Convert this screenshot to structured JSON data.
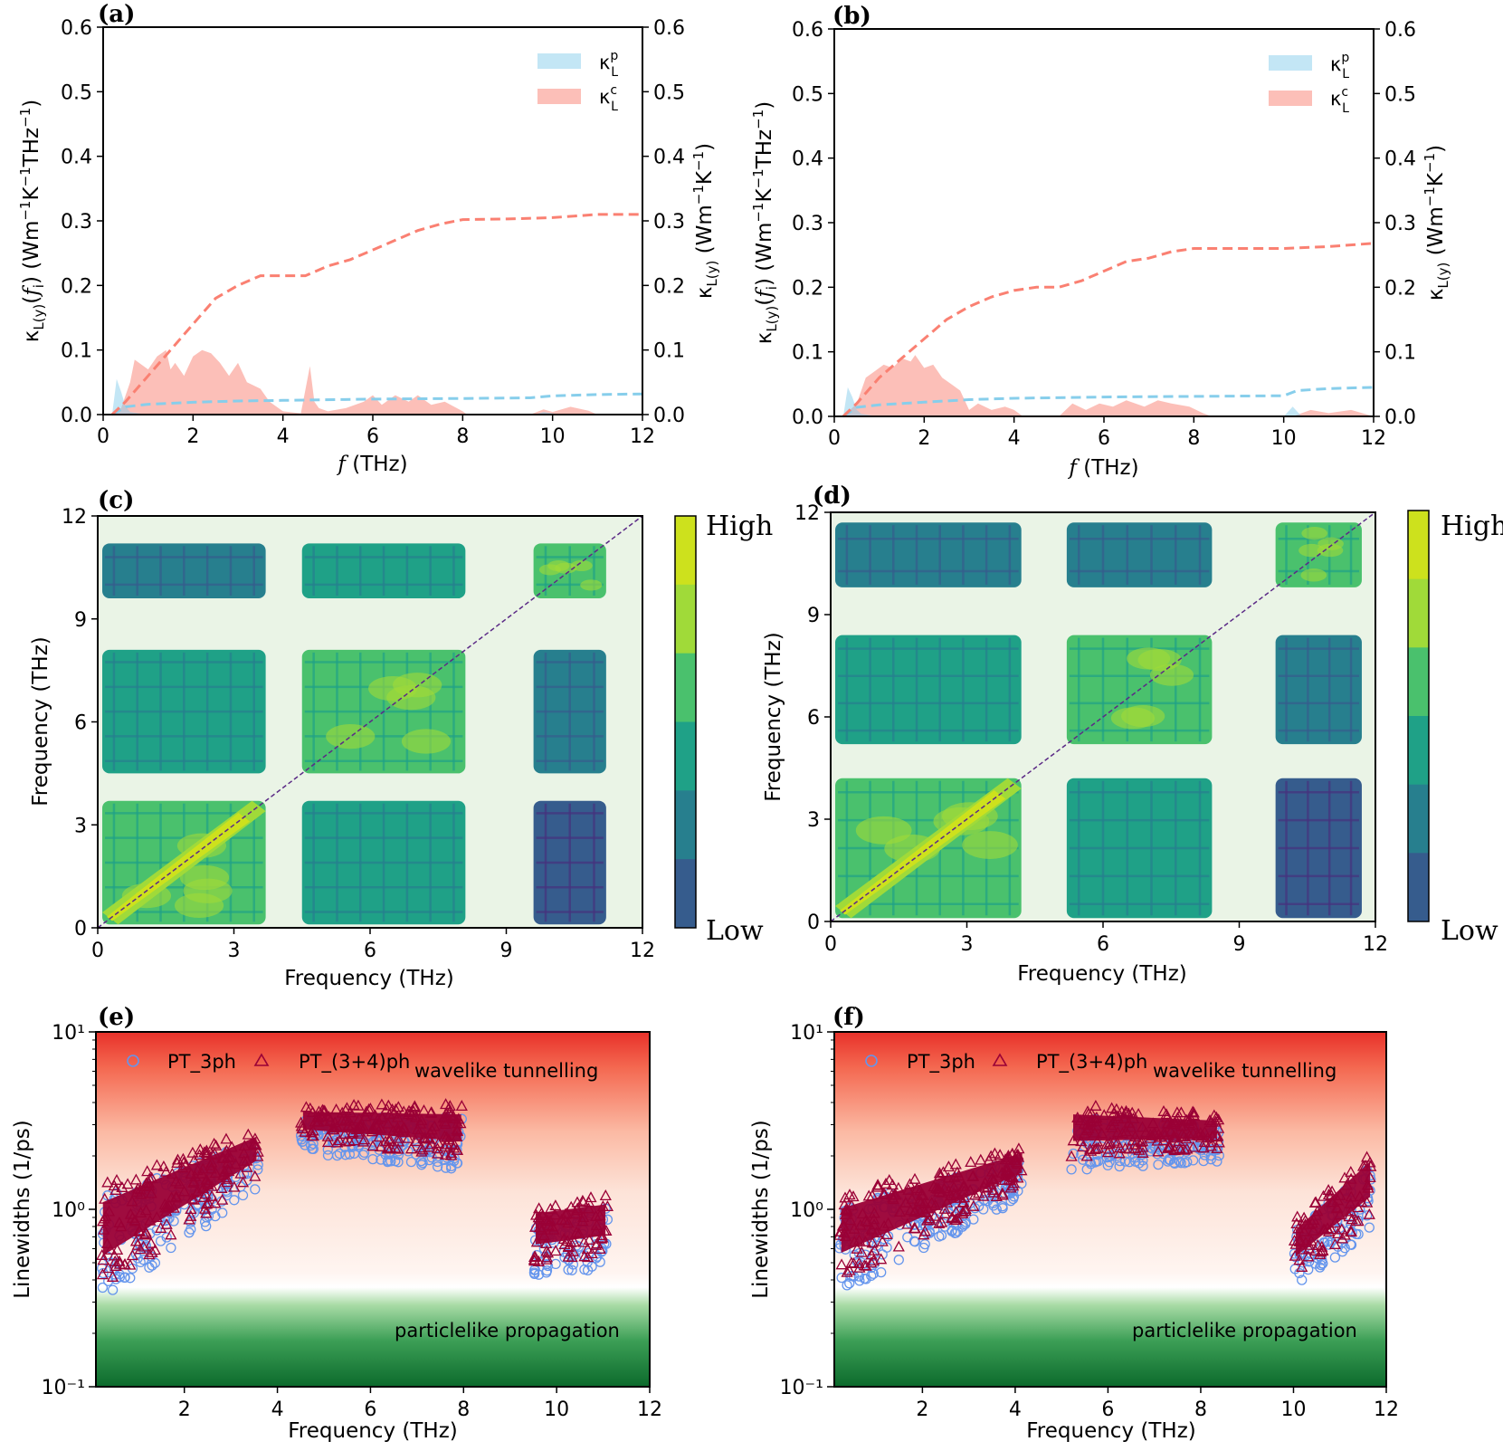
{
  "panels": {
    "a": {
      "label": "(a)",
      "xlabel": "f (THz)",
      "ylabel_left": "κL(y)(fi) (Wm⁻¹K⁻¹THz⁻¹)",
      "ylabel_right": "κL(y) (Wm⁻¹K⁻¹)",
      "legend_p": "κLp",
      "legend_c": "κLc",
      "xticks": [
        "0",
        "2",
        "4",
        "6",
        "8",
        "10",
        "12"
      ],
      "yticks": [
        "0.0",
        "0.1",
        "0.2",
        "0.3",
        "0.4",
        "0.5",
        "0.6"
      ]
    },
    "b": {
      "label": "(b)",
      "xlabel": "f (THz)",
      "ylabel_left": "κL(y)(fi) (Wm⁻¹K⁻¹THz⁻¹)",
      "ylabel_right": "κL(y) (Wm⁻¹K⁻¹)",
      "legend_p": "κLp",
      "legend_c": "κLc",
      "xticks": [
        "0",
        "2",
        "4",
        "6",
        "8",
        "10",
        "12"
      ],
      "yticks": [
        "0.0",
        "0.1",
        "0.2",
        "0.3",
        "0.4",
        "0.5",
        "0.6"
      ]
    },
    "c": {
      "label": "(c)",
      "xlabel": "Frequency (THz)",
      "ylabel": "Frequency (THz)",
      "cbar_high": "High",
      "cbar_low": "Low",
      "ticks": [
        "0",
        "3",
        "6",
        "9",
        "12"
      ]
    },
    "d": {
      "label": "(d)",
      "xlabel": "Frequency (THz)",
      "ylabel": "Frequency (THz)",
      "cbar_high": "High",
      "cbar_low": "Low",
      "ticks": [
        "0",
        "3",
        "6",
        "9",
        "12"
      ]
    },
    "e": {
      "label": "(e)",
      "xlabel": "Frequency (THz)",
      "ylabel": "Linewidths (1/ps)",
      "legend_3ph": "PT_3ph",
      "legend_34ph": "PT_(3+4)ph",
      "annot_top": "wavelike tunnelling",
      "annot_bottom": "particlelike propagation",
      "xticks": [
        "2",
        "4",
        "6",
        "8",
        "10",
        "12"
      ],
      "yticks": [
        "10⁻¹",
        "10⁰",
        "10¹"
      ]
    },
    "f": {
      "label": "(f)",
      "xlabel": "Frequency (THz)",
      "ylabel": "Linewidths (1/ps)",
      "legend_3ph": "PT_3ph",
      "legend_34ph": "PT_(3+4)ph",
      "annot_top": "wavelike tunnelling",
      "annot_bottom": "particlelike propagation",
      "xticks": [
        "2",
        "4",
        "6",
        "8",
        "10",
        "12"
      ],
      "yticks": [
        "10⁻¹",
        "10⁰",
        "10¹"
      ]
    }
  },
  "chart_data": [
    {
      "panel": "a",
      "type": "area",
      "xlim": [
        0,
        12
      ],
      "ylim": [
        0,
        0.6
      ],
      "colors": {
        "p": "#87ceeb",
        "c": "#fa8072"
      },
      "series": [
        {
          "name": "κLp spectral",
          "x": [
            0.2,
            0.3,
            0.4,
            0.5,
            0.6,
            0.8,
            1.0,
            2.0,
            3.0,
            4.0,
            6.0,
            8.0,
            9.6,
            9.8,
            10.0,
            10.2,
            12
          ],
          "y": [
            0,
            0.055,
            0.035,
            0.012,
            0.004,
            0.002,
            0,
            0,
            0,
            0,
            0,
            0,
            0,
            0.004,
            0.002,
            0,
            0
          ]
        },
        {
          "name": "κLc spectral",
          "x": [
            0.2,
            0.4,
            0.6,
            0.7,
            0.8,
            1.0,
            1.2,
            1.4,
            1.5,
            1.6,
            1.8,
            2.0,
            2.2,
            2.4,
            2.6,
            2.8,
            3.0,
            3.2,
            3.5,
            3.7,
            4.0,
            4.4,
            4.6,
            4.7,
            4.8,
            5.0,
            5.4,
            5.8,
            6.0,
            6.2,
            6.5,
            6.8,
            7.0,
            7.3,
            7.6,
            8.0,
            8.1,
            9.5,
            9.8,
            10.0,
            10.4,
            10.8,
            11.0,
            12
          ],
          "y": [
            0,
            0.01,
            0.05,
            0.085,
            0.08,
            0.07,
            0.09,
            0.1,
            0.07,
            0.08,
            0.06,
            0.09,
            0.1,
            0.095,
            0.08,
            0.06,
            0.08,
            0.05,
            0.04,
            0.02,
            0.005,
            0.002,
            0.075,
            0.02,
            0.01,
            0.005,
            0.01,
            0.02,
            0.03,
            0.015,
            0.03,
            0.02,
            0.03,
            0.015,
            0.02,
            0.005,
            0,
            0,
            0.008,
            0.004,
            0.012,
            0.006,
            0,
            0
          ]
        },
        {
          "name": "κLp cumulative",
          "x": [
            0.2,
            0.5,
            1,
            2,
            3,
            4,
            6,
            8,
            9.5,
            10,
            11,
            12
          ],
          "y": [
            0,
            0.012,
            0.016,
            0.019,
            0.021,
            0.022,
            0.024,
            0.025,
            0.026,
            0.029,
            0.031,
            0.032
          ]
        },
        {
          "name": "κLc cumulative",
          "x": [
            0.2,
            0.5,
            1,
            1.5,
            2,
            2.5,
            3,
            3.5,
            4,
            4.5,
            5,
            5.5,
            6,
            6.5,
            7,
            7.5,
            8,
            9,
            10,
            11,
            12
          ],
          "y": [
            0,
            0.02,
            0.06,
            0.1,
            0.14,
            0.18,
            0.2,
            0.215,
            0.215,
            0.215,
            0.23,
            0.24,
            0.255,
            0.27,
            0.285,
            0.295,
            0.302,
            0.303,
            0.305,
            0.31,
            0.31
          ]
        }
      ]
    },
    {
      "panel": "b",
      "type": "area",
      "xlim": [
        0,
        12
      ],
      "ylim": [
        0,
        0.6
      ],
      "colors": {
        "p": "#87ceeb",
        "c": "#fa8072"
      },
      "series": [
        {
          "name": "κLp spectral",
          "x": [
            0.2,
            0.3,
            0.4,
            0.5,
            0.6,
            0.8,
            1.0,
            2.0,
            4.0,
            8.0,
            10.0,
            10.2,
            10.4,
            12
          ],
          "y": [
            0,
            0.045,
            0.03,
            0.01,
            0.004,
            0.002,
            0,
            0,
            0,
            0,
            0,
            0.015,
            0,
            0
          ]
        },
        {
          "name": "κLc spectral",
          "x": [
            0.2,
            0.5,
            0.7,
            0.9,
            1.1,
            1.3,
            1.5,
            1.7,
            1.8,
            2.0,
            2.2,
            2.4,
            2.6,
            2.8,
            3.0,
            3.2,
            3.5,
            3.8,
            4.0,
            4.2,
            5.0,
            5.3,
            5.6,
            5.9,
            6.2,
            6.5,
            6.9,
            7.2,
            7.5,
            7.9,
            8.2,
            8.4,
            10.2,
            10.6,
            11.0,
            11.5,
            12
          ],
          "y": [
            0,
            0.02,
            0.06,
            0.07,
            0.08,
            0.075,
            0.09,
            0.085,
            0.095,
            0.075,
            0.08,
            0.06,
            0.05,
            0.04,
            0.01,
            0.02,
            0.01,
            0.015,
            0.01,
            0,
            0,
            0.02,
            0.01,
            0.02,
            0.015,
            0.025,
            0.015,
            0.025,
            0.02,
            0.015,
            0.005,
            0,
            0,
            0.01,
            0.005,
            0.01,
            0
          ]
        },
        {
          "name": "κLp cumulative",
          "x": [
            0.2,
            0.5,
            1,
            2,
            3,
            4,
            6,
            8,
            10,
            10.3,
            11,
            12
          ],
          "y": [
            0,
            0.014,
            0.018,
            0.022,
            0.026,
            0.028,
            0.03,
            0.031,
            0.032,
            0.04,
            0.043,
            0.045
          ]
        },
        {
          "name": "κLc cumulative",
          "x": [
            0.2,
            0.5,
            1,
            1.5,
            2,
            2.5,
            3,
            3.5,
            4,
            4.5,
            5,
            5.5,
            6,
            6.5,
            7,
            7.5,
            8,
            9,
            10,
            11,
            12
          ],
          "y": [
            0,
            0.02,
            0.06,
            0.09,
            0.12,
            0.15,
            0.17,
            0.185,
            0.195,
            0.2,
            0.2,
            0.21,
            0.225,
            0.24,
            0.245,
            0.255,
            0.26,
            0.26,
            0.26,
            0.263,
            0.268
          ]
        }
      ]
    },
    {
      "panel": "c",
      "type": "heatmap",
      "xlim": [
        0,
        12
      ],
      "ylim": [
        0,
        12
      ],
      "levels": [
        "#46327e",
        "#365c8d",
        "#277f8e",
        "#1fa187",
        "#4ac16d",
        "#a0da39",
        "#cde11d"
      ],
      "background": "#eaf4e6",
      "bands": [
        [
          0.1,
          3.7
        ],
        [
          4.5,
          8.1
        ],
        [
          9.6,
          11.2
        ]
      ],
      "block_levels": [
        [
          4,
          3,
          1
        ],
        [
          3,
          4,
          2
        ],
        [
          2,
          3,
          4
        ]
      ],
      "diagonal_color": "#5b2a86"
    },
    {
      "panel": "d",
      "type": "heatmap",
      "xlim": [
        0,
        12
      ],
      "ylim": [
        0,
        12
      ],
      "levels": [
        "#46327e",
        "#365c8d",
        "#277f8e",
        "#1fa187",
        "#4ac16d",
        "#a0da39",
        "#cde11d"
      ],
      "background": "#eaf4e6",
      "bands": [
        [
          0.1,
          4.2
        ],
        [
          5.2,
          8.4
        ],
        [
          9.8,
          11.7
        ]
      ],
      "block_levels": [
        [
          4,
          3,
          1
        ],
        [
          3,
          4,
          2
        ],
        [
          2,
          2,
          4
        ]
      ],
      "diagonal_color": "#5b2a86"
    },
    {
      "panel": "e",
      "type": "scatter",
      "xlim": [
        0.1,
        12
      ],
      "ylim_log10": [
        -1,
        1
      ],
      "colors": {
        "p3": "#6495ed",
        "p34": "#9a0036"
      },
      "clusters": [
        {
          "x": [
            0.2,
            3.6
          ],
          "log_lo": [
            -0.5,
            0.15
          ],
          "log_hi": [
            0.1,
            0.42
          ]
        },
        {
          "x": [
            4.5,
            8.0
          ],
          "log_lo": [
            0.35,
            0.25
          ],
          "log_hi": [
            0.55,
            0.55
          ]
        },
        {
          "x": [
            9.5,
            11.1
          ],
          "log_lo": [
            -0.35,
            -0.3
          ],
          "log_hi": [
            0.0,
            0.05
          ]
        }
      ]
    },
    {
      "panel": "f",
      "type": "scatter",
      "xlim": [
        0.1,
        12
      ],
      "ylim_log10": [
        -1,
        1
      ],
      "colors": {
        "p3": "#6495ed",
        "p34": "#9a0036"
      },
      "clusters": [
        {
          "x": [
            0.2,
            4.2
          ],
          "log_lo": [
            -0.45,
            0.1
          ],
          "log_hi": [
            0.05,
            0.32
          ]
        },
        {
          "x": [
            5.2,
            8.4
          ],
          "log_lo": [
            0.25,
            0.3
          ],
          "log_hi": [
            0.55,
            0.5
          ]
        },
        {
          "x": [
            10.0,
            11.7
          ],
          "log_lo": [
            -0.4,
            -0.1
          ],
          "log_hi": [
            -0.1,
            0.3
          ]
        }
      ]
    }
  ]
}
